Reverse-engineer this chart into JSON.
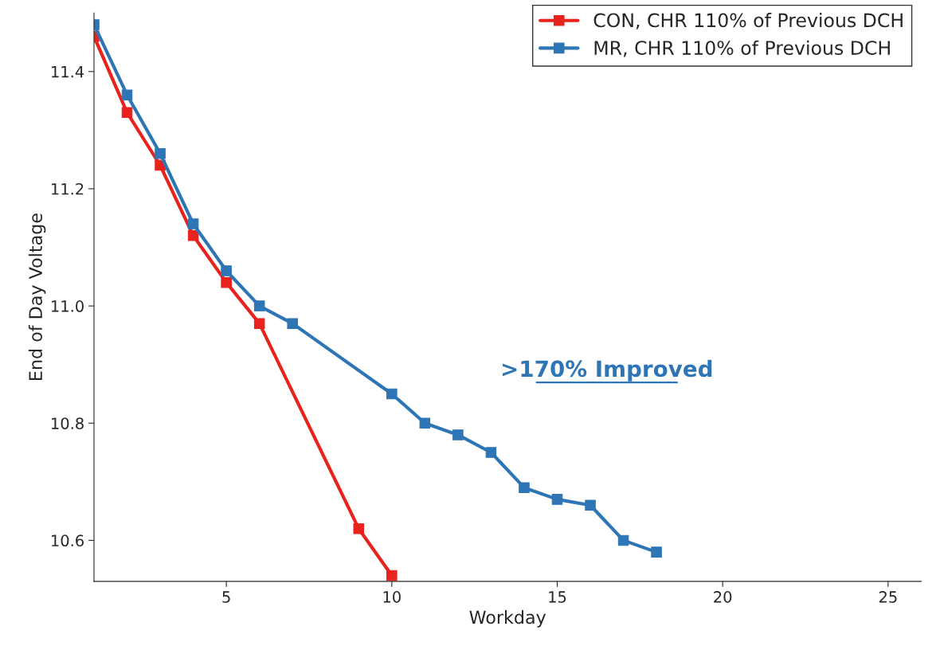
{
  "chart_data": {
    "type": "line",
    "xlabel": "Workday",
    "ylabel": "End of Day Voltage",
    "xlim": [
      1,
      26
    ],
    "xticks": [
      5,
      10,
      15,
      20,
      25
    ],
    "ylim": [
      10.53,
      11.5
    ],
    "yticks": [
      {
        "value": 10.6,
        "label": "10.6"
      },
      {
        "value": 10.8,
        "label": "10.8"
      },
      {
        "value": 11.0,
        "label": "11.0"
      },
      {
        "value": 11.2,
        "label": "11.2"
      },
      {
        "value": 11.4,
        "label": "11.4"
      }
    ],
    "series": [
      {
        "name": "CON, CHR 110% of Previous DCH",
        "color": "#e8221c",
        "x": [
          1,
          2,
          3,
          4,
          5,
          6,
          9,
          10
        ],
        "values": [
          11.46,
          11.33,
          11.24,
          11.12,
          11.04,
          10.97,
          10.62,
          10.54
        ]
      },
      {
        "name": "MR, CHR 110% of Previous DCH",
        "color": "#2e75b6",
        "x": [
          1,
          2,
          3,
          4,
          5,
          6,
          7,
          10,
          11,
          12,
          13,
          14,
          15,
          16,
          17,
          18
        ],
        "values": [
          11.48,
          11.36,
          11.26,
          11.14,
          11.06,
          11.0,
          10.97,
          10.85,
          10.8,
          10.78,
          10.75,
          10.69,
          10.67,
          10.66,
          10.6,
          10.58
        ]
      }
    ],
    "annotations": [
      ">170% Improved"
    ],
    "marker": "square",
    "line_style": "solid",
    "legend": "top right",
    "grid": false
  }
}
